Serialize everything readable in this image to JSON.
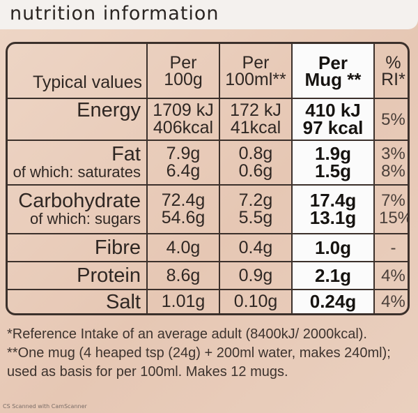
{
  "banner": {
    "title": "nutrition information"
  },
  "header": {
    "typical_values": "Typical values",
    "per100g_l1": "Per",
    "per100g_l2": "100g",
    "per100ml_l1": "Per",
    "per100ml_l2": "100ml**",
    "mug_l1": "Per",
    "mug_l2": "Mug **",
    "ri_l1": "%",
    "ri_l2": "RI*"
  },
  "rows": [
    {
      "label": "Energy",
      "sub": "",
      "g": [
        "1709 kJ",
        "406kcal"
      ],
      "ml": [
        "172 kJ",
        "41kcal"
      ],
      "mug": [
        "410 kJ",
        "97 kcal"
      ],
      "ri": [
        "5%",
        ""
      ]
    },
    {
      "label": "Fat",
      "sub": "of which: saturates",
      "g": [
        "7.9g",
        "6.4g"
      ],
      "ml": [
        "0.8g",
        "0.6g"
      ],
      "mug": [
        "1.9g",
        "1.5g"
      ],
      "ri": [
        "3%",
        "8%"
      ]
    },
    {
      "label": "Carbohydrate",
      "sub": "of which: sugars",
      "g": [
        "72.4g",
        "54.6g"
      ],
      "ml": [
        "7.2g",
        "5.5g"
      ],
      "mug": [
        "17.4g",
        "13.1g"
      ],
      "ri": [
        "7%",
        "15%"
      ]
    },
    {
      "label": "Fibre",
      "sub": "",
      "g": [
        "4.0g",
        ""
      ],
      "ml": [
        "0.4g",
        ""
      ],
      "mug": [
        "1.0g",
        ""
      ],
      "ri": [
        "-",
        ""
      ]
    },
    {
      "label": "Protein",
      "sub": "",
      "g": [
        "8.6g",
        ""
      ],
      "ml": [
        "0.9g",
        ""
      ],
      "mug": [
        "2.1g",
        ""
      ],
      "ri": [
        "4%",
        ""
      ]
    },
    {
      "label": "Salt",
      "sub": "",
      "g": [
        "1.01g",
        ""
      ],
      "ml": [
        "0.10g",
        ""
      ],
      "mug": [
        "0.24g",
        ""
      ],
      "ri": [
        "4%",
        ""
      ]
    }
  ],
  "footnotes": {
    "ri": "*Reference Intake of an average adult (8400kJ/ 2000kcal).",
    "mug": "**One mug (4 heaped tsp (24g) + 200ml water, makes 240ml); used as basis for per 100ml. Makes 12 mugs."
  },
  "scanner": {
    "text": "CS Scanned with CamScanner"
  }
}
